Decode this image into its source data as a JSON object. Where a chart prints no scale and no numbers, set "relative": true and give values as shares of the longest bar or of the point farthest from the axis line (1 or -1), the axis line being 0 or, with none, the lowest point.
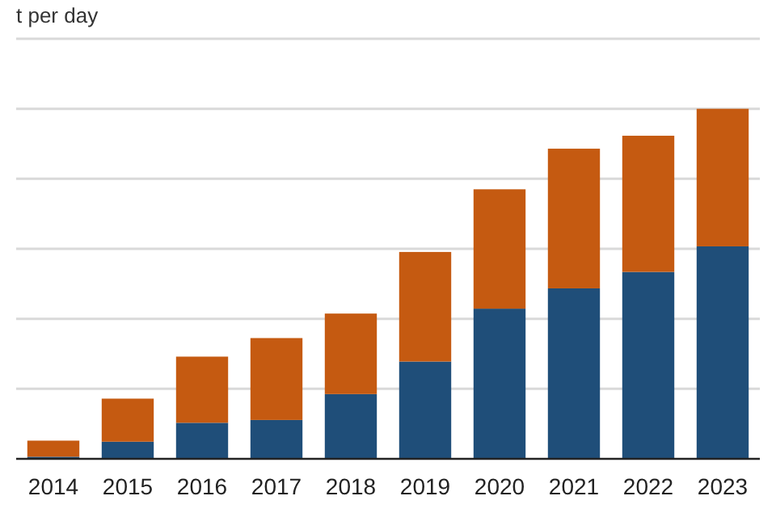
{
  "chart_data": {
    "type": "bar",
    "title": "t per day",
    "stacked": true,
    "relative": true,
    "grid": "y",
    "categories": [
      "2014",
      "2015",
      "2016",
      "2017",
      "2018",
      "2019",
      "2020",
      "2021",
      "2022",
      "2023"
    ],
    "series": [
      {
        "color": "#1f4e79",
        "values": [
          0.006,
          0.049,
          0.103,
          0.111,
          0.185,
          0.278,
          0.429,
          0.487,
          0.534,
          0.607
        ]
      },
      {
        "color": "#c55a11",
        "values": [
          0.046,
          0.123,
          0.189,
          0.234,
          0.23,
          0.313,
          0.341,
          0.399,
          0.389,
          0.393
        ]
      }
    ]
  }
}
